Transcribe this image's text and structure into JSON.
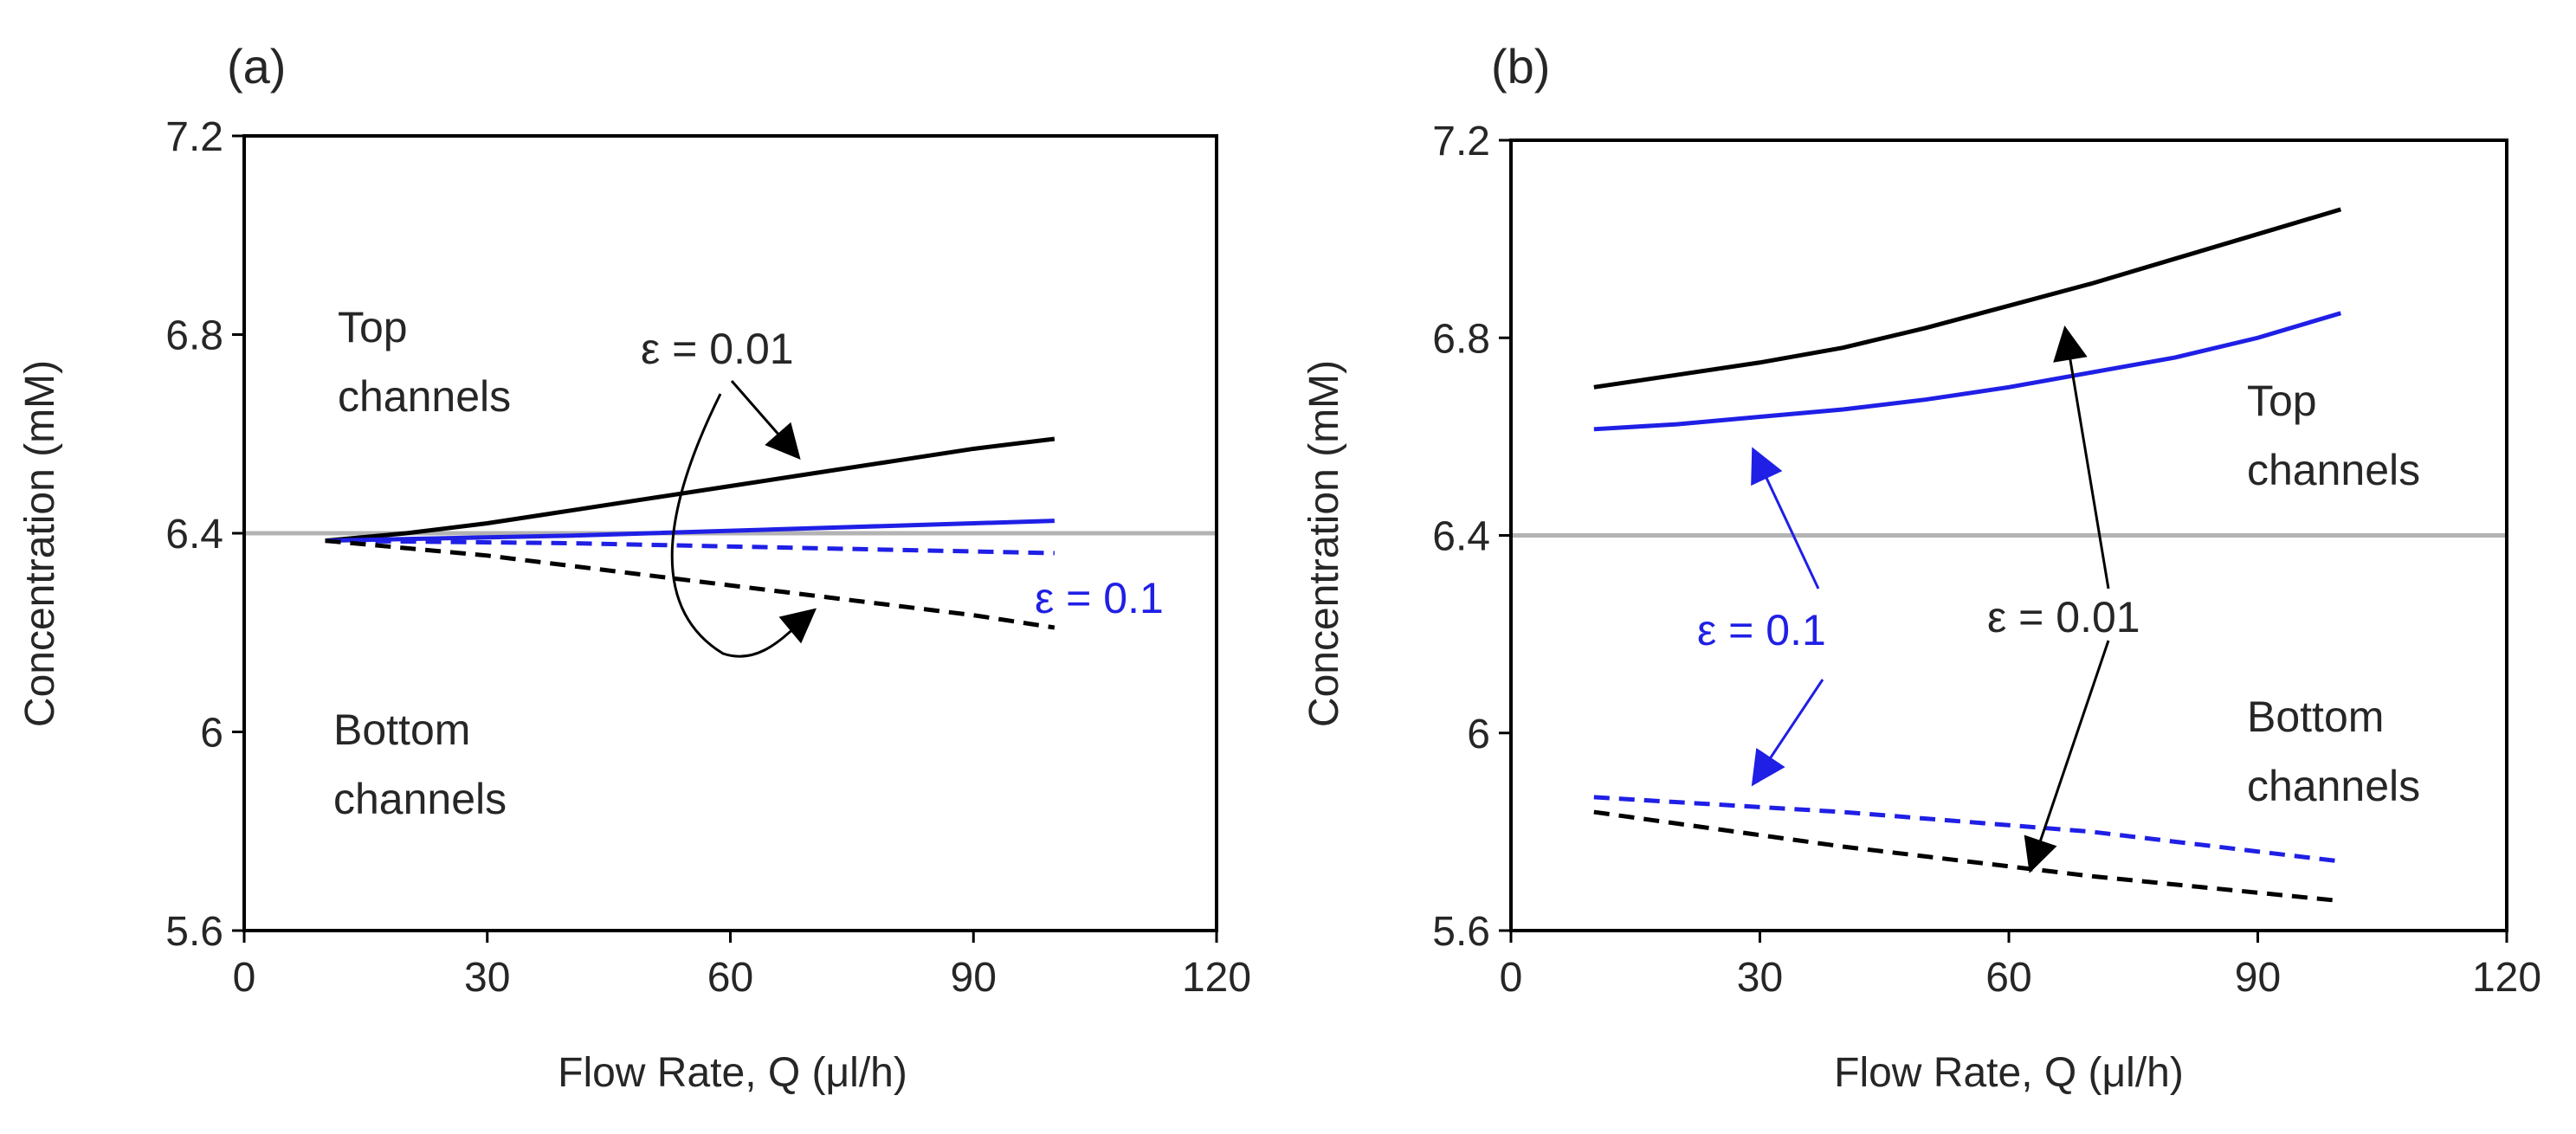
{
  "chart_data": [
    {
      "type": "line",
      "panel_label": "(a)",
      "xlabel": "Flow Rate, Q (μl/h)",
      "ylabel": "Concentration (mM)",
      "xlim": [
        0,
        120
      ],
      "ylim": [
        5.6,
        7.2
      ],
      "x_ticks": [
        "0",
        "30",
        "60",
        "90",
        "120"
      ],
      "y_ticks": [
        "5.6",
        "6",
        "6.4",
        "6.8",
        "7.2"
      ],
      "reference_line": {
        "y": 6.4,
        "color": "#b3b3b3"
      },
      "series": [
        {
          "name": "Top channels, ε = 0.01",
          "color": "#000000",
          "dashed": false,
          "x": [
            10,
            20,
            30,
            40,
            50,
            60,
            70,
            80,
            90,
            100
          ],
          "y": [
            6.385,
            6.4,
            6.42,
            6.445,
            6.47,
            6.495,
            6.52,
            6.545,
            6.57,
            6.59
          ]
        },
        {
          "name": "Top channels, ε = 0.1",
          "color": "#1f1fe6",
          "dashed": false,
          "x": [
            10,
            40,
            70,
            100
          ],
          "y": [
            6.385,
            6.395,
            6.41,
            6.425
          ]
        },
        {
          "name": "Bottom channels, ε = 0.1",
          "color": "#1f1fe6",
          "dashed": true,
          "x": [
            10,
            40,
            70,
            100
          ],
          "y": [
            6.385,
            6.38,
            6.37,
            6.36
          ]
        },
        {
          "name": "Bottom channels, ε = 0.01",
          "color": "#000000",
          "dashed": true,
          "x": [
            10,
            20,
            30,
            40,
            50,
            60,
            70,
            80,
            90,
            100
          ],
          "y": [
            6.385,
            6.37,
            6.355,
            6.335,
            6.315,
            6.295,
            6.275,
            6.255,
            6.235,
            6.21
          ]
        }
      ],
      "annotations": {
        "top_label": [
          "Top",
          "channels"
        ],
        "bottom_label": [
          "Bottom",
          "channels"
        ],
        "eps_small": "ε = 0.01",
        "eps_large": "ε = 0.1"
      }
    },
    {
      "type": "line",
      "panel_label": "(b)",
      "xlabel": "Flow Rate, Q (μl/h)",
      "ylabel": "Concentration (mM)",
      "xlim": [
        0,
        120
      ],
      "ylim": [
        5.6,
        7.2
      ],
      "x_ticks": [
        "0",
        "30",
        "60",
        "90",
        "120"
      ],
      "y_ticks": [
        "5.6",
        "6",
        "6.4",
        "6.8",
        "7.2"
      ],
      "reference_line": {
        "y": 6.4,
        "color": "#b3b3b3"
      },
      "series": [
        {
          "name": "Top channels, ε = 0.01",
          "color": "#000000",
          "dashed": false,
          "x": [
            10,
            20,
            30,
            40,
            50,
            60,
            70,
            80,
            90,
            100
          ],
          "y": [
            6.7,
            6.725,
            6.75,
            6.78,
            6.82,
            6.865,
            6.91,
            6.96,
            7.01,
            7.06
          ]
        },
        {
          "name": "Top channels, ε = 0.1",
          "color": "#1f1fe6",
          "dashed": false,
          "x": [
            10,
            20,
            30,
            40,
            50,
            60,
            70,
            80,
            90,
            100
          ],
          "y": [
            6.615,
            6.625,
            6.64,
            6.655,
            6.675,
            6.7,
            6.73,
            6.76,
            6.8,
            6.85
          ]
        },
        {
          "name": "Bottom channels, ε = 0.1",
          "color": "#1f1fe6",
          "dashed": true,
          "x": [
            10,
            40,
            70,
            100
          ],
          "y": [
            5.87,
            5.84,
            5.8,
            5.74
          ]
        },
        {
          "name": "Bottom channels, ε = 0.01",
          "color": "#000000",
          "dashed": true,
          "x": [
            10,
            40,
            70,
            100
          ],
          "y": [
            5.84,
            5.77,
            5.71,
            5.66
          ]
        }
      ],
      "annotations": {
        "top_label": [
          "Top",
          "channels"
        ],
        "bottom_label": [
          "Bottom",
          "channels"
        ],
        "eps_small": "ε = 0.01",
        "eps_large": "ε = 0.1"
      }
    }
  ]
}
